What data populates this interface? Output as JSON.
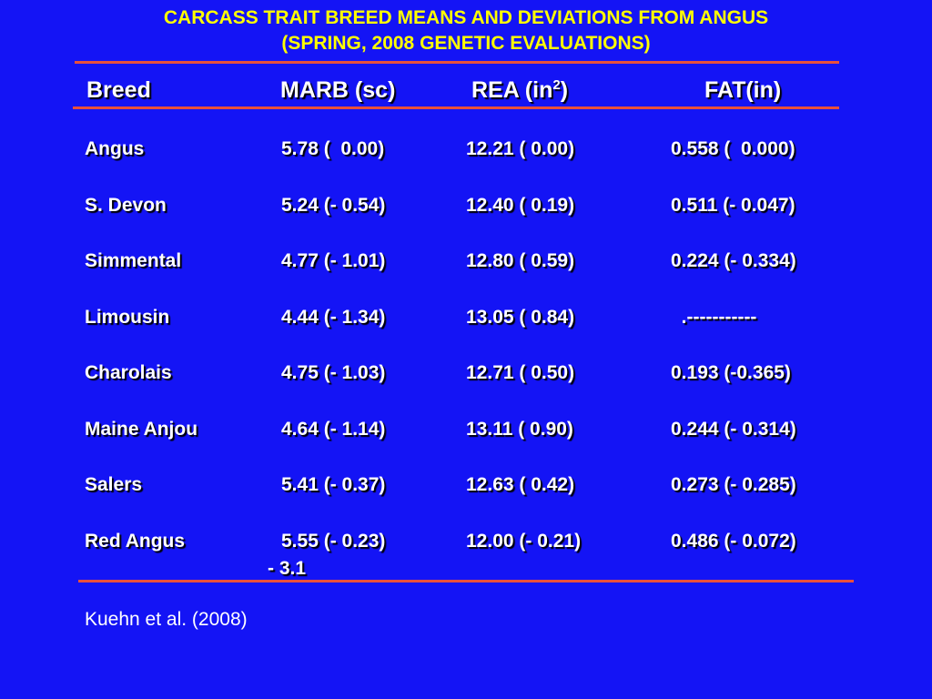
{
  "title": {
    "line1": "CARCASS TRAIT BREED MEANS AND DEVIATIONS FROM ANGUS",
    "line2": "(SPRING, 2008 GENETIC EVALUATIONS)"
  },
  "colors": {
    "background": "#1414f5",
    "title": "#ffff00",
    "rule": "#e8503c",
    "text": "#ffffff"
  },
  "table": {
    "headers": {
      "breed": "Breed",
      "marb": "MARB (sc)",
      "rea_prefix": "REA (in",
      "rea_sup": "2",
      "rea_suffix": ")",
      "fat": "FAT(in)"
    },
    "rows": [
      {
        "breed": "Angus",
        "marb": "5.78 (  0.00)",
        "rea": "12.21 ( 0.00)",
        "fat": "0.558 (  0.000)"
      },
      {
        "breed": "S. Devon",
        "marb": "5.24 (- 0.54)",
        "rea": "12.40 ( 0.19)",
        "fat": "0.511 (- 0.047)"
      },
      {
        "breed": "Simmental",
        "marb": "4.77 (- 1.01)",
        "rea": "12.80 ( 0.59)",
        "fat": "0.224 (- 0.334)"
      },
      {
        "breed": "Limousin",
        "marb": "4.44 (- 1.34)",
        "rea": "13.05 ( 0.84)",
        "fat": "  .-----------"
      },
      {
        "breed": "Charolais",
        "marb": "4.75 (- 1.03)",
        "rea": "12.71 ( 0.50)",
        "fat": "0.193 (-0.365)"
      },
      {
        "breed": "Maine Anjou",
        "marb": "4.64 (- 1.14)",
        "rea": "13.11 ( 0.90)",
        "fat": "0.244 (- 0.314)"
      },
      {
        "breed": "Salers",
        "marb": "5.41 (- 0.37)",
        "rea": "12.63 ( 0.42)",
        "fat": "0.273 (- 0.285)"
      },
      {
        "breed": "Red Angus",
        "marb": "5.55 (- 0.23)",
        "rea": "12.00 (- 0.21)",
        "fat": "0.486 (- 0.072)"
      }
    ],
    "extra_note": "- 3.1"
  },
  "footnote": "Kuehn et al. (2008)"
}
